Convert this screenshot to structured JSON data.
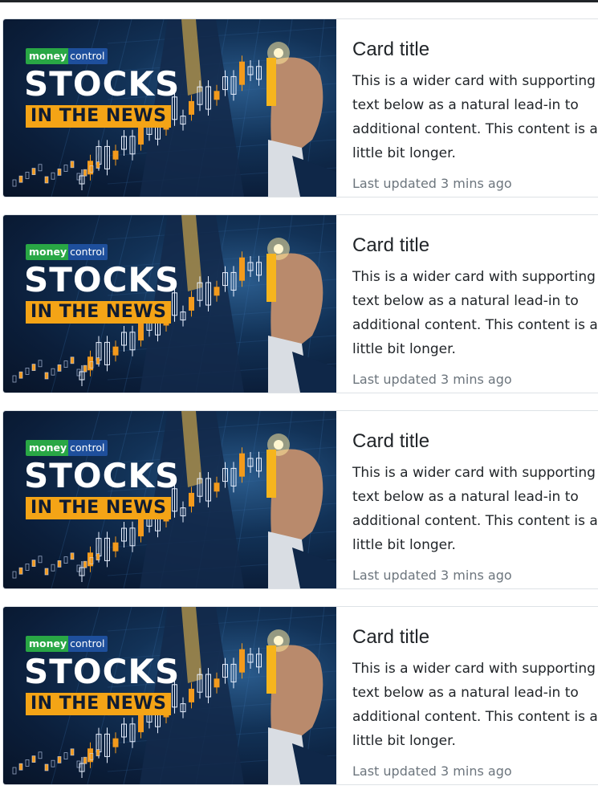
{
  "cards": [
    {
      "title": "Card title",
      "text": "This is a wider card with supporting text below as a natural lead-in to additional content. This content is a little bit longer.",
      "updated": "Last updated 3 mins ago",
      "image": {
        "logo_left": "money",
        "logo_right": "control",
        "headline": "STOCKS",
        "subheadline": "IN THE NEWS"
      }
    },
    {
      "title": "Card title",
      "text": "This is a wider card with supporting text below as a natural lead-in to additional content. This content is a little bit longer.",
      "updated": "Last updated 3 mins ago",
      "image": {
        "logo_left": "money",
        "logo_right": "control",
        "headline": "STOCKS",
        "subheadline": "IN THE NEWS"
      }
    },
    {
      "title": "Card title",
      "text": "This is a wider card with supporting text below as a natural lead-in to additional content. This content is a little bit longer.",
      "updated": "Last updated 3 mins ago",
      "image": {
        "logo_left": "money",
        "logo_right": "control",
        "headline": "STOCKS",
        "subheadline": "IN THE NEWS"
      }
    },
    {
      "title": "Card title",
      "text": "This is a wider card with supporting text below as a natural lead-in to additional content. This content is a little bit longer.",
      "updated": "Last updated 3 mins ago",
      "image": {
        "logo_left": "money",
        "logo_right": "control",
        "headline": "STOCKS",
        "subheadline": "IN THE NEWS"
      }
    }
  ],
  "colors": {
    "logo_green": "#29a745",
    "logo_blue": "#1e4f9c",
    "banner_orange": "#f4a416",
    "muted_text": "#6c757d"
  }
}
